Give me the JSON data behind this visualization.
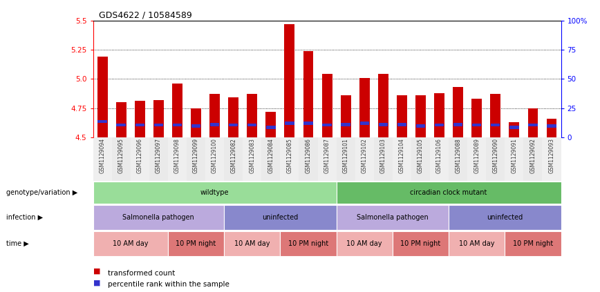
{
  "title": "GDS4622 / 10584589",
  "samples": [
    "GSM1129094",
    "GSM1129095",
    "GSM1129096",
    "GSM1129097",
    "GSM1129098",
    "GSM1129099",
    "GSM1129100",
    "GSM1129082",
    "GSM1129083",
    "GSM1129084",
    "GSM1129085",
    "GSM1129086",
    "GSM1129087",
    "GSM1129101",
    "GSM1129102",
    "GSM1129103",
    "GSM1129104",
    "GSM1129105",
    "GSM1129106",
    "GSM1129088",
    "GSM1129089",
    "GSM1129090",
    "GSM1129091",
    "GSM1129092",
    "GSM1129093"
  ],
  "red_values": [
    5.19,
    4.8,
    4.81,
    4.82,
    4.96,
    4.75,
    4.87,
    4.84,
    4.87,
    4.72,
    5.47,
    5.24,
    5.04,
    4.86,
    5.01,
    5.04,
    4.86,
    4.86,
    4.88,
    4.93,
    4.83,
    4.87,
    4.63,
    4.75,
    4.66
  ],
  "blue_values": [
    4.635,
    4.605,
    4.605,
    4.605,
    4.605,
    4.595,
    4.61,
    4.605,
    4.605,
    4.585,
    4.62,
    4.62,
    4.605,
    4.61,
    4.62,
    4.61,
    4.61,
    4.595,
    4.605,
    4.61,
    4.605,
    4.605,
    4.585,
    4.605,
    4.595
  ],
  "y_min": 4.5,
  "y_max": 5.5,
  "y_ticks": [
    4.5,
    4.75,
    5.0,
    5.25,
    5.5
  ],
  "right_y_ticks": [
    0,
    25,
    50,
    75,
    100
  ],
  "right_y_labels": [
    "0",
    "25",
    "50",
    "75",
    "100%"
  ],
  "bar_color": "#cc0000",
  "blue_color": "#3333cc",
  "bar_width": 0.55,
  "genotype_groups": [
    {
      "label": "wildtype",
      "start": 0,
      "end": 12,
      "color": "#99dd99"
    },
    {
      "label": "circadian clock mutant",
      "start": 13,
      "end": 24,
      "color": "#66bb66"
    }
  ],
  "infection_groups": [
    {
      "label": "Salmonella pathogen",
      "start": 0,
      "end": 6,
      "color": "#bbaadd"
    },
    {
      "label": "uninfected",
      "start": 7,
      "end": 12,
      "color": "#8888cc"
    },
    {
      "label": "Salmonella pathogen",
      "start": 13,
      "end": 18,
      "color": "#bbaadd"
    },
    {
      "label": "uninfected",
      "start": 19,
      "end": 24,
      "color": "#8888cc"
    }
  ],
  "time_groups": [
    {
      "label": "10 AM day",
      "start": 0,
      "end": 3,
      "color": "#f0b0b0"
    },
    {
      "label": "10 PM night",
      "start": 4,
      "end": 6,
      "color": "#dd7777"
    },
    {
      "label": "10 AM day",
      "start": 7,
      "end": 9,
      "color": "#f0b0b0"
    },
    {
      "label": "10 PM night",
      "start": 10,
      "end": 12,
      "color": "#dd7777"
    },
    {
      "label": "10 AM day",
      "start": 13,
      "end": 15,
      "color": "#f0b0b0"
    },
    {
      "label": "10 PM night",
      "start": 16,
      "end": 18,
      "color": "#dd7777"
    },
    {
      "label": "10 AM day",
      "start": 19,
      "end": 21,
      "color": "#f0b0b0"
    },
    {
      "label": "10 PM night",
      "start": 22,
      "end": 24,
      "color": "#dd7777"
    }
  ],
  "row_labels": [
    "genotype/variation",
    "infection",
    "time"
  ],
  "legend_items": [
    {
      "label": "transformed count",
      "color": "#cc0000"
    },
    {
      "label": "percentile rank within the sample",
      "color": "#3333cc"
    }
  ]
}
